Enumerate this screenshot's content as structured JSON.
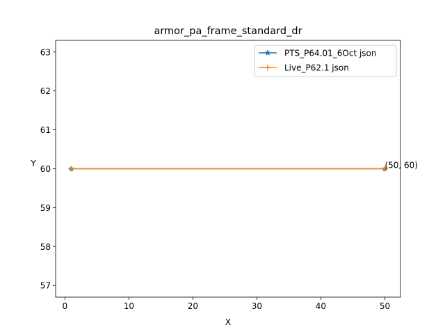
{
  "chart_data": {
    "type": "line",
    "title": "armor_pa_frame_standard_dr",
    "xlabel": "X",
    "ylabel": "Y",
    "xlim": [
      -1.45,
      52.45
    ],
    "ylim": [
      56.7,
      63.3
    ],
    "xticks": [
      0,
      10,
      20,
      30,
      40,
      50
    ],
    "yticks": [
      57,
      58,
      59,
      60,
      61,
      62,
      63
    ],
    "grid": false,
    "legend_position": "upper right",
    "series": [
      {
        "name": "PTS_P64.01_6Oct json",
        "color": "#1f77b4",
        "marker": "star",
        "x": [
          1,
          50
        ],
        "y": [
          60,
          60
        ]
      },
      {
        "name": "Live_P62.1 json",
        "color": "#ff7f0e",
        "marker": "plus",
        "x": [
          1,
          50
        ],
        "y": [
          60,
          60
        ]
      }
    ],
    "annotations": [
      {
        "x": 50,
        "y": 60,
        "text": "(50, 60)"
      }
    ]
  }
}
